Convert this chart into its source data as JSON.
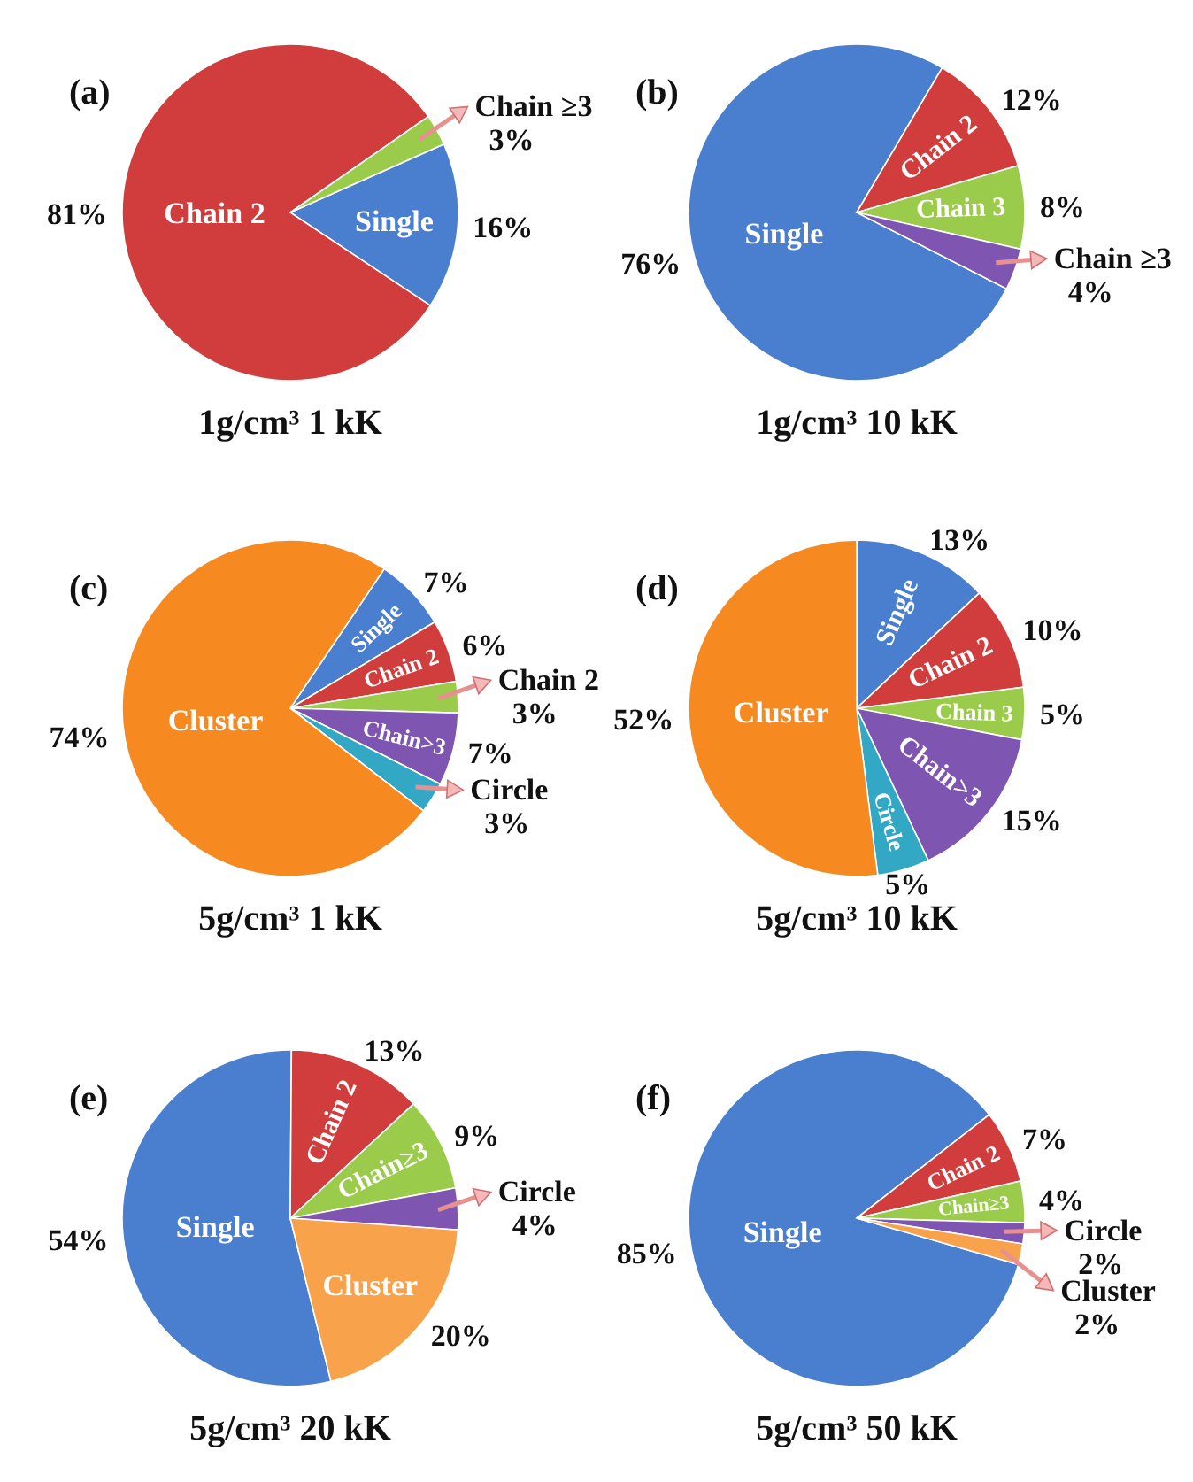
{
  "chart_data": [
    {
      "type": "pie",
      "title": "1g/cm³ 1 kK",
      "annotations": [
        "(a)"
      ],
      "categories": [
        "Single",
        "Chain 2",
        "Chain ≥3"
      ],
      "values": [
        16,
        81,
        3
      ],
      "value_labels": [
        "16%",
        "81%",
        "3%"
      ],
      "colors": [
        "#4a7fd0",
        "#d13d3d",
        "#9acb4a"
      ]
    },
    {
      "type": "pie",
      "title": "1g/cm³ 10 kK",
      "annotations": [
        "(b)"
      ],
      "categories": [
        "Single",
        "Chain 2",
        "Chain 3",
        "Chain ≥3"
      ],
      "values": [
        76,
        12,
        8,
        4
      ],
      "value_labels": [
        "76%",
        "12%",
        "8%",
        "4%"
      ],
      "colors": [
        "#4a7fd0",
        "#d13d3d",
        "#9acb4a",
        "#7e55b0"
      ]
    },
    {
      "type": "pie",
      "title": "5g/cm³ 1 kK",
      "annotations": [
        "(c)"
      ],
      "categories": [
        "Single",
        "Chain 2",
        "Chain 2",
        "Chain>3",
        "Circle",
        "Cluster"
      ],
      "values": [
        7,
        6,
        3,
        7,
        3,
        74
      ],
      "value_labels": [
        "7%",
        "6%",
        "3%",
        "7%",
        "3%",
        "74%"
      ],
      "colors": [
        "#4a7fd0",
        "#d13d3d",
        "#9acb4a",
        "#7e55b0",
        "#32a8c4",
        "#f68a20"
      ]
    },
    {
      "type": "pie",
      "title": "5g/cm³ 10 kK",
      "annotations": [
        "(d)"
      ],
      "categories": [
        "Single",
        "Chain 2",
        "Chain 3",
        "Chain>3",
        "Circle",
        "Cluster"
      ],
      "values": [
        13,
        10,
        5,
        15,
        5,
        52
      ],
      "value_labels": [
        "13%",
        "10%",
        "5%",
        "15%",
        "5%",
        "52%"
      ],
      "colors": [
        "#4a7fd0",
        "#d13d3d",
        "#9acb4a",
        "#7e55b0",
        "#32a8c4",
        "#f68a20"
      ]
    },
    {
      "type": "pie",
      "title": "5g/cm³ 20 kK",
      "annotations": [
        "(e)"
      ],
      "categories": [
        "Single",
        "Chain 2",
        "Chain≥3",
        "Circle",
        "Cluster"
      ],
      "values": [
        54,
        13,
        9,
        4,
        20
      ],
      "value_labels": [
        "54%",
        "13%",
        "9%",
        "4%",
        "20%"
      ],
      "colors": [
        "#4a7fd0",
        "#d13d3d",
        "#9acb4a",
        "#7e55b0",
        "#f9a24c"
      ]
    },
    {
      "type": "pie",
      "title": "5g/cm³ 50 kK",
      "annotations": [
        "(f)"
      ],
      "categories": [
        "Single",
        "Chain 2",
        "Chain≥3",
        "Circle",
        "Cluster"
      ],
      "values": [
        85,
        7,
        4,
        2,
        2
      ],
      "value_labels": [
        "85%",
        "7%",
        "4%",
        "2%",
        "2%"
      ],
      "colors": [
        "#4a7fd0",
        "#d13d3d",
        "#9acb4a",
        "#7e55b0",
        "#f9a24c"
      ]
    }
  ]
}
